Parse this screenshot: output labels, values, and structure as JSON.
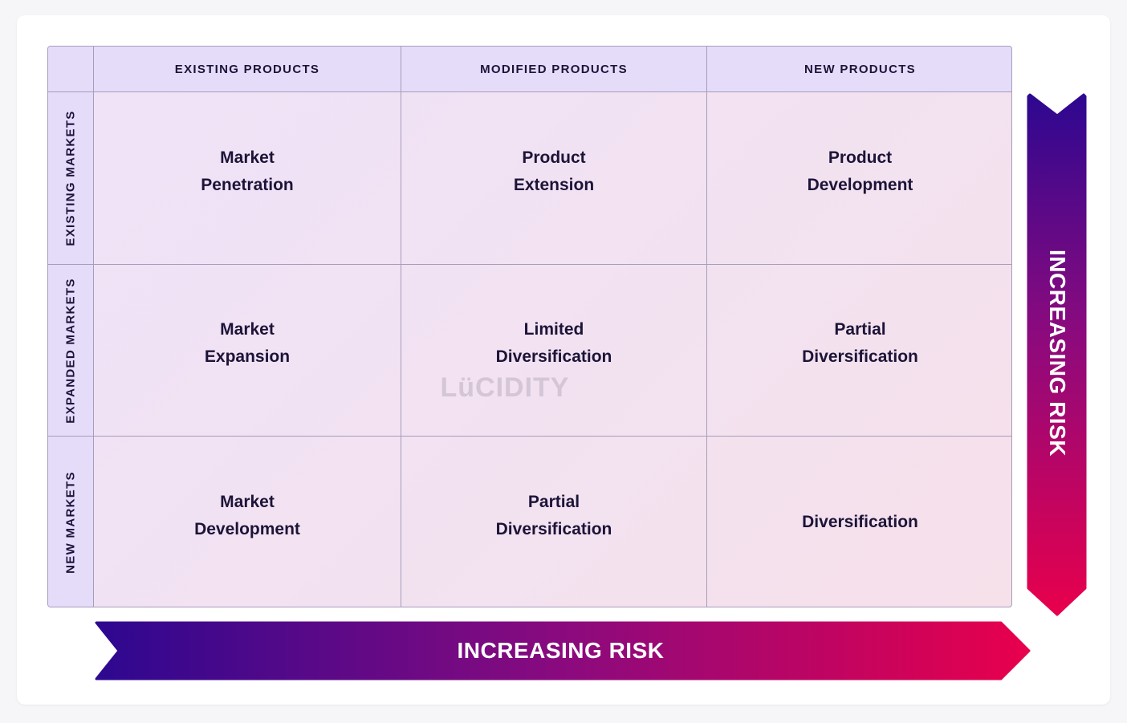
{
  "matrix": {
    "column_headers": [
      "EXISTING PRODUCTS",
      "MODIFIED PRODUCTS",
      "NEW PRODUCTS"
    ],
    "row_headers": [
      "EXISTING MARKETS",
      "EXPANDED MARKETS",
      "NEW MARKETS"
    ],
    "cells": [
      [
        {
          "line1": "Market",
          "line2": "Penetration"
        },
        {
          "line1": "Product",
          "line2": "Extension"
        },
        {
          "line1": "Product",
          "line2": "Development"
        }
      ],
      [
        {
          "line1": "Market",
          "line2": "Expansion"
        },
        {
          "line1": "Limited",
          "line2": "Diversification"
        },
        {
          "line1": "Partial",
          "line2": "Diversification"
        }
      ],
      [
        {
          "line1": "Market",
          "line2": "Development"
        },
        {
          "line1": "Partial",
          "line2": "Diversification"
        },
        {
          "line1": "Diversification",
          "line2": ""
        }
      ]
    ]
  },
  "vertical_arrow": {
    "label": "INCREASING RISK"
  },
  "horizontal_arrow": {
    "label": "INCREASING RISK"
  },
  "watermark": "LüCIDITY",
  "colors": {
    "header_bg": "#e4dcf9",
    "text": "#1c1438",
    "arrow_start": "#2d0890",
    "arrow_end": "#e8004c"
  }
}
